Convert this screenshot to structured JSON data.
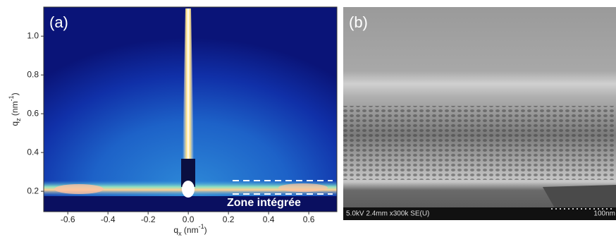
{
  "panels": [
    {
      "label": "(a)",
      "xlim": [
        -0.72,
        0.74
      ],
      "ylim": [
        0.095,
        1.15
      ],
      "xticks": [
        -0.6,
        -0.4,
        -0.2,
        {
          "value": 0,
          "label": "0.0"
        },
        0.2,
        0.4,
        0.6
      ],
      "yticks": [
        0.2,
        0.4,
        0.6,
        0.8,
        {
          "value": 1,
          "label": "1.0"
        }
      ],
      "xlabel": [
        "q",
        "x",
        " (nm",
        "-1",
        ")"
      ],
      "ylabel": [
        "q",
        "z",
        " (nm",
        "-1",
        ")"
      ],
      "annotation": "Zone intégrée"
    },
    {
      "label": "(b)",
      "footer": "5.0kV 2.4mm x300k SE(U)",
      "scale": "100nm"
    }
  ]
}
